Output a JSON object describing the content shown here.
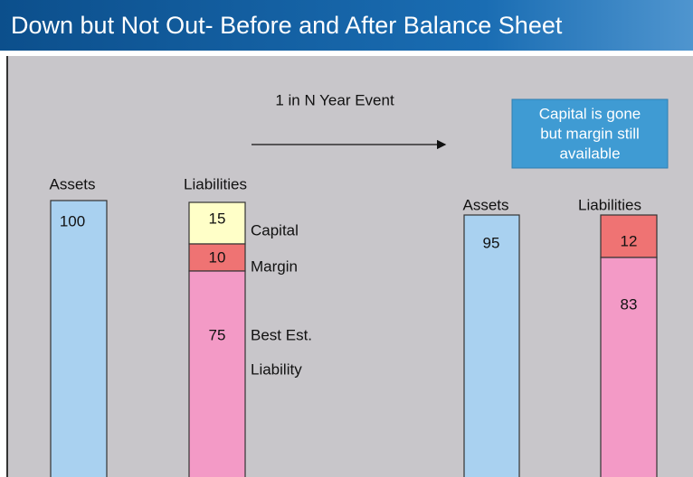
{
  "header": {
    "title": "Down but Not Out- Before and After Balance Sheet"
  },
  "event": {
    "label": "1 in N Year Event"
  },
  "callout": {
    "lines": [
      "Capital is gone",
      "but margin still",
      "available"
    ]
  },
  "before": {
    "assets": {
      "label": "Assets",
      "value": "100"
    },
    "liabilities": {
      "label": "Liabilities",
      "segments": [
        {
          "value": "15",
          "label": [
            "Capital"
          ]
        },
        {
          "value": "10",
          "label": [
            "Margin"
          ]
        },
        {
          "value": "75",
          "label": [
            "Best Est.",
            "Liability"
          ]
        }
      ]
    }
  },
  "after": {
    "assets": {
      "label": "Assets",
      "value": "95"
    },
    "liabilities": {
      "label": "Liabilities",
      "segments": [
        {
          "value": "12"
        },
        {
          "value": "83"
        }
      ]
    }
  }
}
